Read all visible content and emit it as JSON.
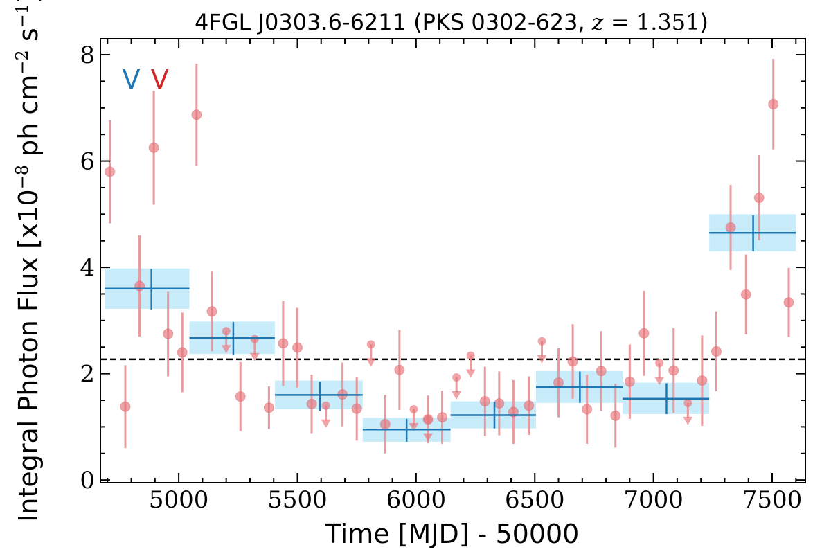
{
  "chart_data": {
    "type": "scatter",
    "title": "4FGL J0303.6-6211 (PKS 0302-623, z = 1.351)",
    "title_parts": {
      "pre": "4FGL J0303.6-6211 (PKS 0302-623, ",
      "zvar": "z",
      "zval": " = 1.351",
      "post": ")"
    },
    "xlabel": "Time [MJD] - 50000",
    "ylabel": "Integral Photon Flux [x10",
    "ylabel_parts": {
      "base": "Integral Photon Flux [x10",
      "exp1": "−8",
      "mid": " ph cm",
      "exp2": "−2",
      "mid2": " s",
      "exp3": "−1",
      "end": "]"
    },
    "xlim": [
      4670,
      7640
    ],
    "ylim": [
      -0.05,
      8.3
    ],
    "xticks": [
      5000,
      5500,
      6000,
      6500,
      7000,
      7500
    ],
    "yticks": [
      0,
      2,
      4,
      6,
      8
    ],
    "grid": false,
    "mean_flux": 2.27,
    "markers": [
      {
        "label": "V",
        "color": "#1f77b4",
        "x": 4800
      },
      {
        "label": "V",
        "color": "#d62728",
        "x": 4920
      }
    ],
    "monthly_points": [
      {
        "x": 4710,
        "y": 5.8,
        "err": 0.97
      },
      {
        "x": 4775,
        "y": 1.38,
        "err": 0.78
      },
      {
        "x": 4835,
        "y": 3.65,
        "err": 0.95
      },
      {
        "x": 4895,
        "y": 6.25,
        "err": 1.07
      },
      {
        "x": 4955,
        "y": 2.75,
        "err": 0.8
      },
      {
        "x": 5015,
        "y": 2.4,
        "err": 0.75
      },
      {
        "x": 5075,
        "y": 6.87,
        "err": 0.96
      },
      {
        "x": 5140,
        "y": 3.17,
        "err": 0.75
      },
      {
        "x": 5260,
        "y": 1.57,
        "err": 0.65
      },
      {
        "x": 5380,
        "y": 1.36,
        "err": 0.4
      },
      {
        "x": 5440,
        "y": 2.57,
        "err": 0.8
      },
      {
        "x": 5500,
        "y": 2.49,
        "err": 0.75
      },
      {
        "x": 5560,
        "y": 1.43,
        "err": 0.55
      },
      {
        "x": 5690,
        "y": 1.61,
        "err": 0.6
      },
      {
        "x": 5750,
        "y": 1.34,
        "err": 0.6
      },
      {
        "x": 5870,
        "y": 1.05,
        "err": 0.55
      },
      {
        "x": 5930,
        "y": 2.07,
        "err": 0.75
      },
      {
        "x": 6050,
        "y": 1.14,
        "err": 0.45
      },
      {
        "x": 6110,
        "y": 1.18,
        "err": 0.5
      },
      {
        "x": 6290,
        "y": 1.48,
        "err": 0.65
      },
      {
        "x": 6350,
        "y": 1.44,
        "err": 0.6
      },
      {
        "x": 6410,
        "y": 1.28,
        "err": 0.6
      },
      {
        "x": 6475,
        "y": 1.4,
        "err": 0.55
      },
      {
        "x": 6600,
        "y": 1.83,
        "err": 0.65
      },
      {
        "x": 6660,
        "y": 2.23,
        "err": 0.7
      },
      {
        "x": 6720,
        "y": 1.33,
        "err": 0.65
      },
      {
        "x": 6780,
        "y": 2.05,
        "err": 0.75
      },
      {
        "x": 6840,
        "y": 1.21,
        "err": 0.6
      },
      {
        "x": 6900,
        "y": 1.85,
        "err": 0.7
      },
      {
        "x": 6960,
        "y": 2.76,
        "err": 0.8
      },
      {
        "x": 7085,
        "y": 2.06,
        "err": 0.8
      },
      {
        "x": 7205,
        "y": 1.87,
        "err": 0.85
      },
      {
        "x": 7265,
        "y": 2.42,
        "err": 0.75
      },
      {
        "x": 7325,
        "y": 4.75,
        "err": 0.8
      },
      {
        "x": 7390,
        "y": 3.49,
        "err": 0.75
      },
      {
        "x": 7445,
        "y": 5.31,
        "err": 0.8
      },
      {
        "x": 7505,
        "y": 7.07,
        "err": 0.85
      },
      {
        "x": 7570,
        "y": 3.34,
        "err": 0.65
      }
    ],
    "upper_limits": [
      {
        "x": 5200,
        "y": 2.8
      },
      {
        "x": 5320,
        "y": 2.65
      },
      {
        "x": 5620,
        "y": 1.4
      },
      {
        "x": 5810,
        "y": 2.55
      },
      {
        "x": 5990,
        "y": 1.33
      },
      {
        "x": 6050,
        "y": 1.14
      },
      {
        "x": 6170,
        "y": 1.93
      },
      {
        "x": 6230,
        "y": 2.34
      },
      {
        "x": 6530,
        "y": 2.61
      },
      {
        "x": 7025,
        "y": 2.2
      },
      {
        "x": 7145,
        "y": 1.45
      }
    ],
    "binned_points": [
      {
        "x0": 4690,
        "x1": 5045,
        "xc": 4885,
        "y": 3.6,
        "ylo": 3.22,
        "yhi": 3.98,
        "barlo": 3.2,
        "barhi": 3.97
      },
      {
        "x0": 5045,
        "x1": 5405,
        "xc": 5230,
        "y": 2.67,
        "ylo": 2.37,
        "yhi": 2.98,
        "barlo": 2.35,
        "barhi": 2.97
      },
      {
        "x0": 5405,
        "x1": 5775,
        "xc": 5595,
        "y": 1.6,
        "ylo": 1.33,
        "yhi": 1.87,
        "barlo": 1.3,
        "barhi": 1.85
      },
      {
        "x0": 5775,
        "x1": 6145,
        "xc": 5960,
        "y": 0.95,
        "ylo": 0.72,
        "yhi": 1.17,
        "barlo": 0.72,
        "barhi": 1.15
      },
      {
        "x0": 6145,
        "x1": 6505,
        "xc": 6330,
        "y": 1.22,
        "ylo": 0.97,
        "yhi": 1.48,
        "barlo": 0.97,
        "barhi": 1.47
      },
      {
        "x0": 6505,
        "x1": 6870,
        "xc": 6690,
        "y": 1.75,
        "ylo": 1.45,
        "yhi": 2.05,
        "barlo": 1.45,
        "barhi": 2.04
      },
      {
        "x0": 6870,
        "x1": 7235,
        "xc": 7055,
        "y": 1.53,
        "ylo": 1.24,
        "yhi": 1.83,
        "barlo": 1.24,
        "barhi": 1.82
      },
      {
        "x0": 7235,
        "x1": 7600,
        "xc": 7420,
        "y": 4.65,
        "ylo": 4.3,
        "yhi": 5.0,
        "barlo": 4.3,
        "barhi": 4.98
      }
    ],
    "colors": {
      "monthly": "#e8737a",
      "monthly_err": "#e89a9e",
      "binned": "#1f77b4",
      "binned_box": "#c9ecfb",
      "mean_line": "#000000"
    }
  }
}
